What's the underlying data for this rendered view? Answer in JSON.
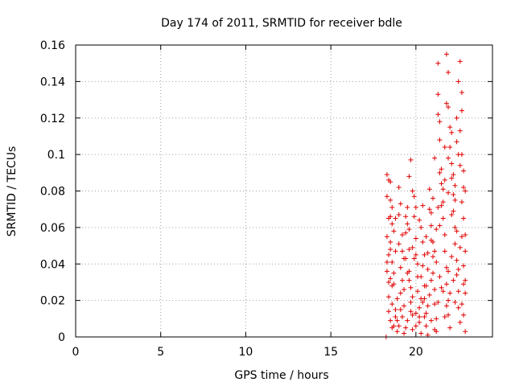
{
  "chart_data": {
    "type": "scatter",
    "title": "Day 174 of 2011, SRMTID for receiver bdle",
    "xlabel": "GPS time / hours",
    "ylabel": "SRMTID / TECUs",
    "xlim": [
      0,
      24.5
    ],
    "ylim": [
      0,
      0.16
    ],
    "x_ticks": [
      0,
      5,
      10,
      15,
      20
    ],
    "x_tick_labels": [
      "0",
      "5",
      "10",
      "15",
      "20"
    ],
    "y_ticks": [
      0,
      0.02,
      0.04,
      0.06,
      0.08,
      0.1,
      0.12,
      0.14,
      0.16
    ],
    "y_tick_labels": [
      "0",
      "0.02",
      "0.04",
      "0.06",
      "0.08",
      "0.1",
      "0.12",
      "0.14",
      "0.16"
    ],
    "grid": true,
    "marker": "plus",
    "color": "#e00000",
    "points": [
      [
        18.25,
        0.0
      ],
      [
        18.3,
        0.089
      ],
      [
        18.4,
        0.086
      ],
      [
        18.5,
        0.085
      ],
      [
        18.3,
        0.077
      ],
      [
        18.5,
        0.075
      ],
      [
        18.4,
        0.065
      ],
      [
        18.6,
        0.062
      ],
      [
        18.3,
        0.055
      ],
      [
        18.5,
        0.052
      ],
      [
        18.7,
        0.058
      ],
      [
        18.4,
        0.045
      ],
      [
        18.6,
        0.041
      ],
      [
        18.8,
        0.047
      ],
      [
        18.3,
        0.036
      ],
      [
        18.5,
        0.032
      ],
      [
        18.7,
        0.029
      ],
      [
        18.4,
        0.022
      ],
      [
        18.6,
        0.018
      ],
      [
        18.8,
        0.015
      ],
      [
        18.5,
        0.009
      ],
      [
        18.7,
        0.006
      ],
      [
        18.9,
        0.003
      ],
      [
        18.4,
        0.014
      ],
      [
        18.9,
        0.021
      ],
      [
        19.0,
        0.067
      ],
      [
        19.0,
        0.051
      ],
      [
        19.1,
        0.038
      ],
      [
        19.2,
        0.031
      ],
      [
        19.1,
        0.024
      ],
      [
        19.3,
        0.017
      ],
      [
        19.2,
        0.011
      ],
      [
        19.4,
        0.005
      ],
      [
        19.3,
        0.043
      ],
      [
        19.4,
        0.057
      ],
      [
        19.5,
        0.071
      ],
      [
        19.5,
        0.062
      ],
      [
        19.6,
        0.048
      ],
      [
        19.6,
        0.036
      ],
      [
        19.7,
        0.027
      ],
      [
        19.7,
        0.019
      ],
      [
        19.8,
        0.012
      ],
      [
        19.8,
        0.004
      ],
      [
        19.7,
        0.097
      ],
      [
        19.6,
        0.088
      ],
      [
        19.8,
        0.08
      ],
      [
        19.9,
        0.077
      ],
      [
        19.9,
        0.066
      ],
      [
        20.0,
        0.054
      ],
      [
        20.0,
        0.045
      ],
      [
        20.1,
        0.033
      ],
      [
        20.1,
        0.025
      ],
      [
        20.2,
        0.016
      ],
      [
        20.2,
        0.008
      ],
      [
        20.3,
        0.002
      ],
      [
        20.3,
        0.06
      ],
      [
        20.4,
        0.052
      ],
      [
        20.4,
        0.039
      ],
      [
        20.5,
        0.028
      ],
      [
        20.5,
        0.021
      ],
      [
        20.6,
        0.013
      ],
      [
        20.6,
        0.006
      ],
      [
        20.7,
        0.001
      ],
      [
        20.7,
        0.046
      ],
      [
        20.8,
        0.081
      ],
      [
        20.8,
        0.07
      ],
      [
        20.9,
        0.061
      ],
      [
        20.9,
        0.053
      ],
      [
        21.0,
        0.044
      ],
      [
        21.0,
        0.035
      ],
      [
        21.1,
        0.026
      ],
      [
        21.1,
        0.018
      ],
      [
        21.2,
        0.01
      ],
      [
        21.2,
        0.003
      ],
      [
        21.3,
        0.133
      ],
      [
        21.3,
        0.122
      ],
      [
        21.4,
        0.118
      ],
      [
        21.4,
        0.108
      ],
      [
        21.3,
        0.15
      ],
      [
        21.5,
        0.092
      ],
      [
        21.5,
        0.084
      ],
      [
        21.6,
        0.074
      ],
      [
        21.6,
        0.065
      ],
      [
        21.7,
        0.056
      ],
      [
        21.7,
        0.047
      ],
      [
        21.8,
        0.038
      ],
      [
        21.8,
        0.029
      ],
      [
        21.9,
        0.02
      ],
      [
        21.9,
        0.012
      ],
      [
        22.0,
        0.005
      ],
      [
        21.8,
        0.155
      ],
      [
        21.9,
        0.145
      ],
      [
        21.8,
        0.128
      ],
      [
        21.9,
        0.126
      ],
      [
        22.0,
        0.115
      ],
      [
        22.0,
        0.104
      ],
      [
        22.1,
        0.095
      ],
      [
        22.1,
        0.087
      ],
      [
        22.2,
        0.078
      ],
      [
        22.2,
        0.069
      ],
      [
        22.3,
        0.06
      ],
      [
        22.3,
        0.051
      ],
      [
        22.4,
        0.042
      ],
      [
        22.4,
        0.034
      ],
      [
        22.5,
        0.025
      ],
      [
        22.5,
        0.016
      ],
      [
        22.6,
        0.008
      ],
      [
        22.6,
        0.151
      ],
      [
        22.5,
        0.14
      ],
      [
        22.7,
        0.134
      ],
      [
        22.7,
        0.124
      ],
      [
        22.6,
        0.113
      ],
      [
        22.7,
        0.1
      ],
      [
        22.8,
        0.091
      ],
      [
        22.8,
        0.082
      ],
      [
        22.7,
        0.074
      ],
      [
        22.8,
        0.065
      ],
      [
        22.9,
        0.056
      ],
      [
        22.9,
        0.047
      ],
      [
        22.8,
        0.039
      ],
      [
        22.9,
        0.031
      ],
      [
        22.9,
        0.024
      ],
      [
        22.8,
        0.012
      ],
      [
        22.9,
        0.003
      ],
      [
        22.5,
        0.1
      ],
      [
        22.4,
        0.12
      ],
      [
        22.2,
        0.089
      ],
      [
        21.1,
        0.098
      ],
      [
        21.0,
        0.076
      ],
      [
        20.9,
        0.068
      ],
      [
        20.6,
        0.055
      ],
      [
        20.4,
        0.072
      ],
      [
        20.2,
        0.064
      ],
      [
        20.0,
        0.071
      ],
      [
        19.9,
        0.043
      ],
      [
        19.5,
        0.035
      ],
      [
        19.3,
        0.026
      ],
      [
        19.1,
        0.015
      ],
      [
        18.9,
        0.009
      ],
      [
        18.6,
        0.028
      ],
      [
        18.7,
        0.035
      ],
      [
        18.5,
        0.048
      ],
      [
        18.6,
        0.071
      ],
      [
        18.8,
        0.065
      ],
      [
        19.0,
        0.082
      ],
      [
        19.2,
        0.056
      ],
      [
        19.4,
        0.043
      ],
      [
        19.6,
        0.031
      ],
      [
        19.8,
        0.022
      ],
      [
        20.0,
        0.013
      ],
      [
        20.3,
        0.033
      ],
      [
        20.5,
        0.045
      ],
      [
        20.7,
        0.037
      ],
      [
        21.0,
        0.052
      ],
      [
        21.2,
        0.041
      ],
      [
        21.4,
        0.033
      ],
      [
        21.6,
        0.025
      ],
      [
        21.8,
        0.017
      ],
      [
        22.0,
        0.024
      ],
      [
        22.2,
        0.031
      ],
      [
        22.4,
        0.058
      ],
      [
        22.6,
        0.049
      ],
      [
        22.7,
        0.055
      ],
      [
        22.3,
        0.083
      ],
      [
        22.1,
        0.067
      ],
      [
        21.9,
        0.079
      ],
      [
        21.7,
        0.086
      ],
      [
        21.5,
        0.072
      ],
      [
        21.4,
        0.061
      ],
      [
        21.2,
        0.059
      ],
      [
        21.1,
        0.047
      ],
      [
        20.9,
        0.031
      ],
      [
        20.8,
        0.023
      ],
      [
        20.6,
        0.028
      ],
      [
        20.4,
        0.019
      ],
      [
        20.2,
        0.011
      ],
      [
        20.0,
        0.006
      ],
      [
        19.7,
        0.014
      ],
      [
        19.5,
        0.009
      ],
      [
        19.3,
        0.002
      ],
      [
        19.0,
        0.006
      ],
      [
        18.8,
        0.011
      ],
      [
        18.6,
        0.005
      ],
      [
        18.4,
        0.03
      ],
      [
        18.3,
        0.041
      ],
      [
        18.5,
        0.066
      ],
      [
        19.1,
        0.073
      ],
      [
        19.2,
        0.047
      ],
      [
        19.4,
        0.066
      ],
      [
        19.6,
        0.059
      ],
      [
        19.8,
        0.049
      ],
      [
        20.1,
        0.04
      ],
      [
        20.3,
        0.021
      ],
      [
        20.5,
        0.011
      ],
      [
        20.7,
        0.017
      ],
      [
        20.9,
        0.009
      ],
      [
        21.1,
        0.004
      ],
      [
        21.3,
        0.019
      ],
      [
        21.5,
        0.027
      ],
      [
        21.7,
        0.011
      ],
      [
        21.9,
        0.036
      ],
      [
        22.1,
        0.044
      ],
      [
        22.3,
        0.019
      ],
      [
        22.5,
        0.037
      ],
      [
        22.7,
        0.018
      ],
      [
        22.8,
        0.029
      ],
      [
        22.9,
        0.08
      ],
      [
        22.6,
        0.094
      ],
      [
        22.4,
        0.107
      ],
      [
        22.3,
        0.075
      ],
      [
        22.1,
        0.112
      ],
      [
        21.9,
        0.098
      ],
      [
        21.7,
        0.104
      ],
      [
        21.6,
        0.081
      ],
      [
        21.4,
        0.09
      ],
      [
        21.3,
        0.071
      ]
    ]
  }
}
